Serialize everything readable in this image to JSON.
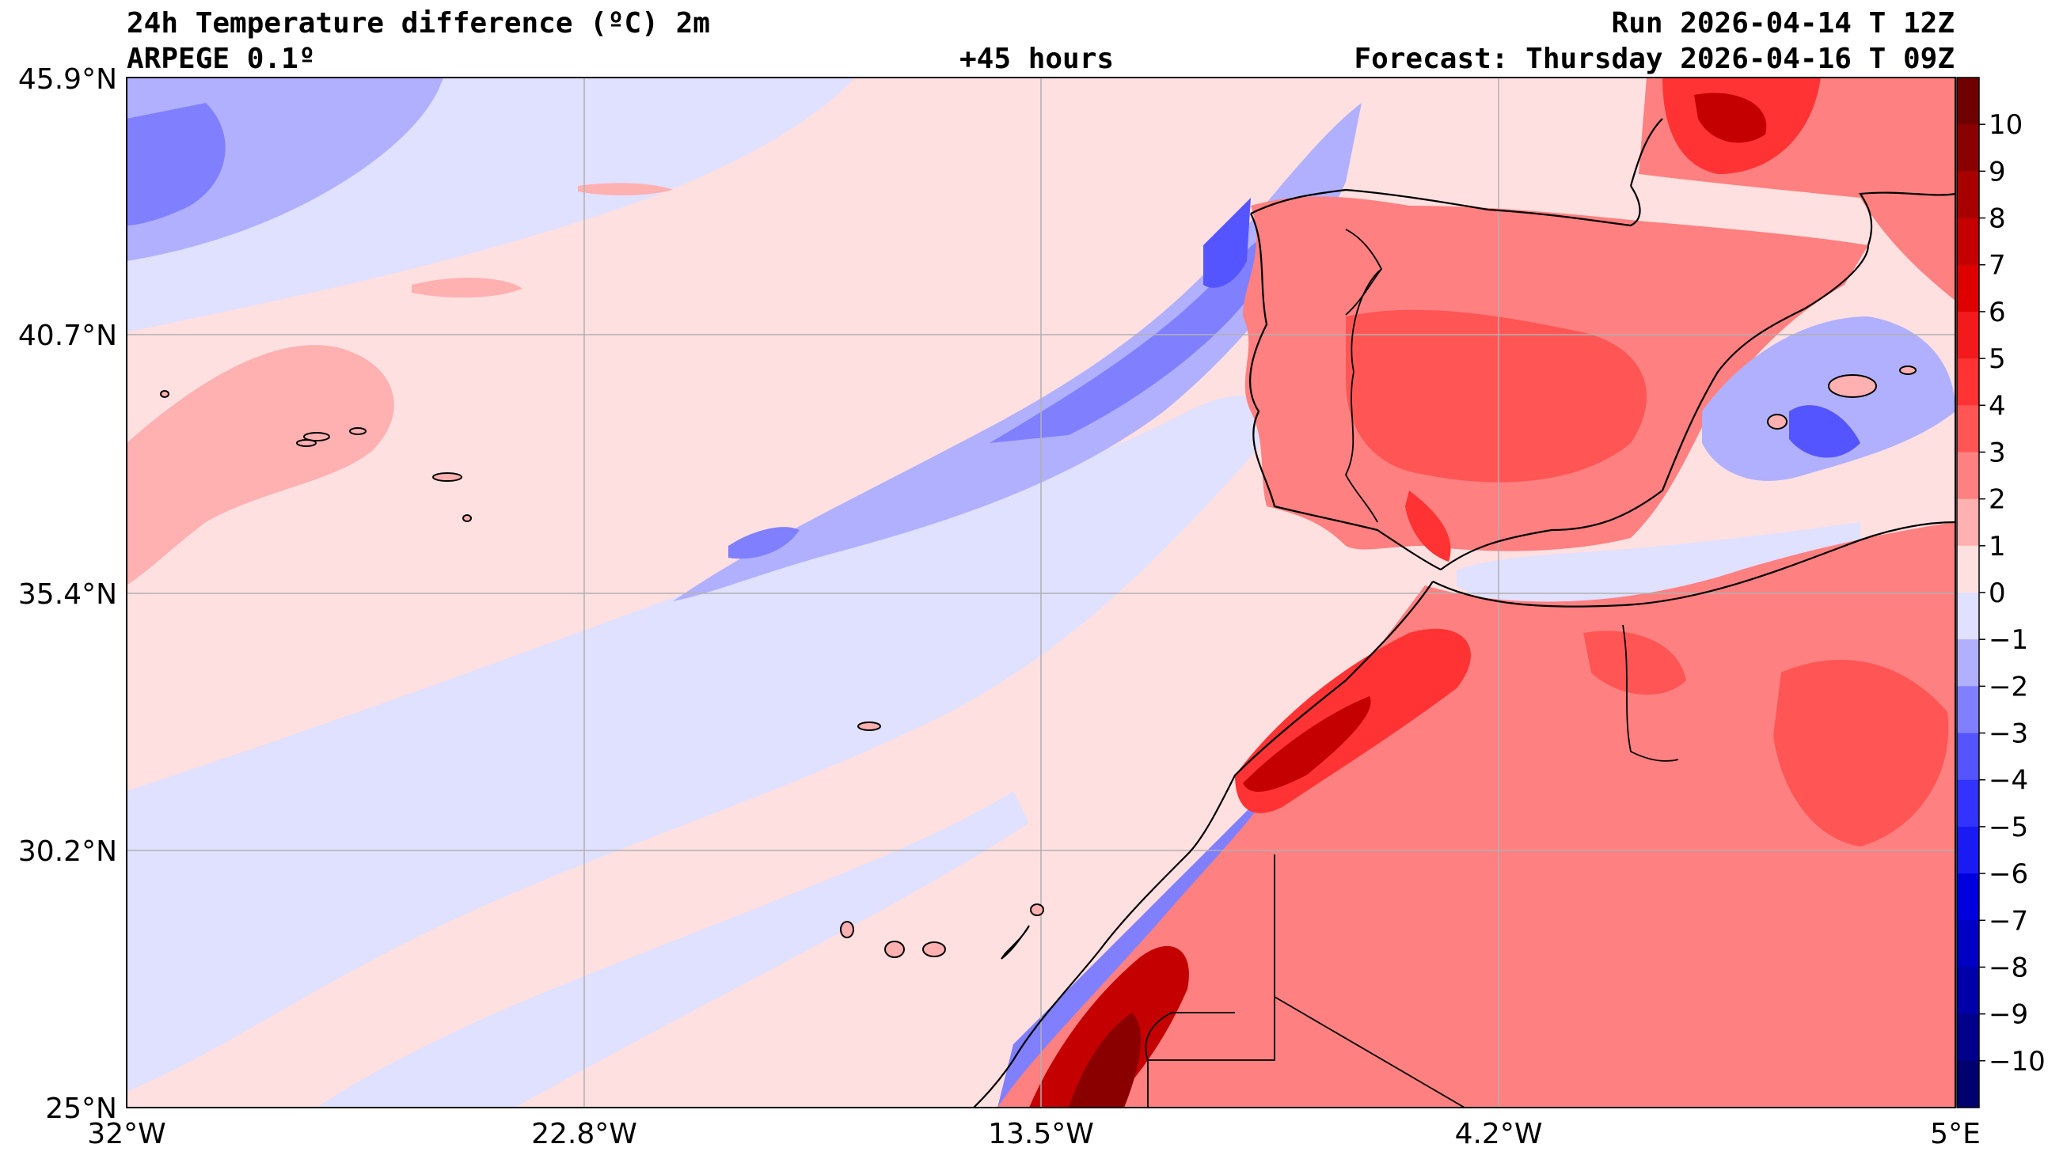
{
  "header": {
    "title": "24h Temperature difference (ºC) 2m",
    "model": "ARPEGE 0.1º",
    "lead": "+45 hours",
    "run": "Run 2026-04-14 T 12Z",
    "forecast": "Forecast: Thursday 2026-04-16 T 09Z"
  },
  "axes": {
    "x_ticks": [
      "32°W",
      "22.8°W",
      "13.5°W",
      "4.2°W",
      "5°E"
    ],
    "y_ticks": [
      "45.9°N",
      "40.7°N",
      "35.4°N",
      "30.2°N",
      "25°N"
    ]
  },
  "colorbar": {
    "labels": [
      "10",
      "9",
      "8",
      "7",
      "6",
      "5",
      "4",
      "3",
      "2",
      "1",
      "0",
      "−1",
      "−2",
      "−3",
      "−4",
      "−5",
      "−6",
      "−7",
      "−8",
      "−9",
      "−10"
    ],
    "colors": [
      "#6e0000",
      "#8a0000",
      "#a80000",
      "#c40000",
      "#de0000",
      "#f21a1a",
      "#ff3333",
      "#ff5555",
      "#ff8080",
      "#ffb0b0",
      "#ffe0e0",
      "#e0e0ff",
      "#b0b0ff",
      "#8080ff",
      "#5555ff",
      "#3333ff",
      "#1a1af2",
      "#0000de",
      "#0000c4",
      "#0000a8",
      "#00008a",
      "#00006e"
    ]
  }
}
